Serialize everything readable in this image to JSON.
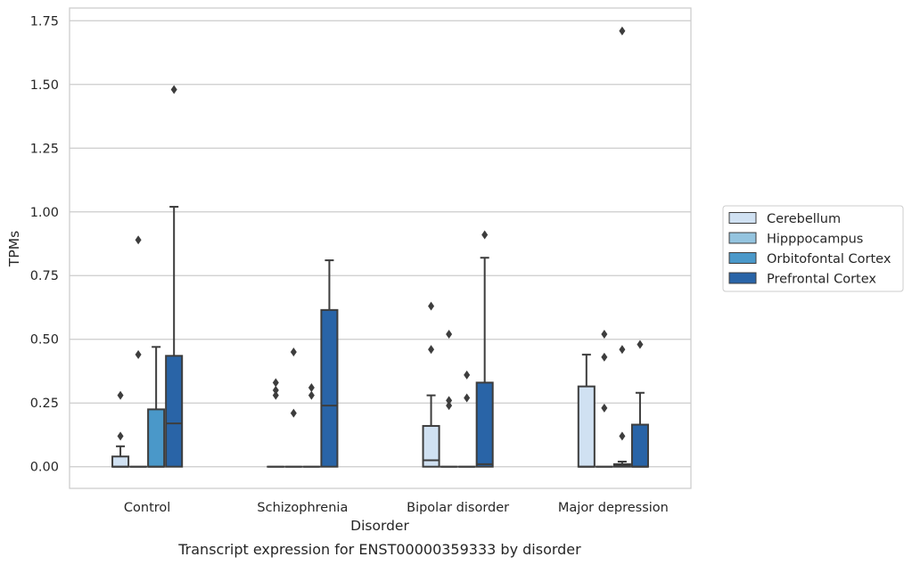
{
  "chart_data": {
    "type": "boxplot",
    "title": "",
    "caption": "Transcript expression for ENST00000359333 by disorder",
    "xlabel": "Disorder",
    "ylabel": "TPMs",
    "ylim": [
      -0.085,
      1.8
    ],
    "yticks": [
      0.0,
      0.25,
      0.5,
      0.75,
      1.0,
      1.25,
      1.5,
      1.75
    ],
    "ytick_labels": [
      "0.00",
      "0.25",
      "0.50",
      "0.75",
      "1.00",
      "1.25",
      "1.50",
      "1.75"
    ],
    "grid": true,
    "legend_position": "right",
    "categories": [
      "Control",
      "Schizophrenia",
      "Bipolar disorder",
      "Major depression"
    ],
    "series": [
      {
        "name": "Cerebellum",
        "color": "#d0e1f2",
        "boxes": [
          {
            "whislo": 0.0,
            "q1": 0.0,
            "med": 0.0,
            "q3": 0.04,
            "whishi": 0.08,
            "fliers": [
              0.12,
              0.28
            ]
          },
          {
            "whislo": 0.0,
            "q1": 0.0,
            "med": 0.0,
            "q3": 0.0,
            "whishi": 0.0,
            "fliers": [
              0.28,
              0.3,
              0.33
            ]
          },
          {
            "whislo": 0.0,
            "q1": 0.0,
            "med": 0.025,
            "q3": 0.16,
            "whishi": 0.28,
            "fliers": [
              0.46,
              0.63
            ]
          },
          {
            "whislo": 0.0,
            "q1": 0.0,
            "med": 0.0,
            "q3": 0.315,
            "whishi": 0.44,
            "fliers": []
          }
        ]
      },
      {
        "name": "Hipppocampus",
        "color": "#94c4df",
        "boxes": [
          {
            "whislo": 0.0,
            "q1": 0.0,
            "med": 0.0,
            "q3": 0.0,
            "whishi": 0.0,
            "fliers": [
              0.44,
              0.89
            ]
          },
          {
            "whislo": 0.0,
            "q1": 0.0,
            "med": 0.0,
            "q3": 0.0,
            "whishi": 0.0,
            "fliers": [
              0.21,
              0.45
            ]
          },
          {
            "whislo": 0.0,
            "q1": 0.0,
            "med": 0.0,
            "q3": 0.0,
            "whishi": 0.0,
            "fliers": [
              0.24,
              0.26,
              0.52
            ]
          },
          {
            "whislo": 0.0,
            "q1": 0.0,
            "med": 0.0,
            "q3": 0.0,
            "whishi": 0.0,
            "fliers": [
              0.23,
              0.43,
              0.52
            ]
          }
        ]
      },
      {
        "name": "Orbitofontal Cortex",
        "color": "#4a98c9",
        "boxes": [
          {
            "whislo": 0.0,
            "q1": 0.0,
            "med": 0.0,
            "q3": 0.225,
            "whishi": 0.47,
            "fliers": []
          },
          {
            "whislo": 0.0,
            "q1": 0.0,
            "med": 0.0,
            "q3": 0.0,
            "whishi": 0.0,
            "fliers": [
              0.28,
              0.31
            ]
          },
          {
            "whislo": 0.0,
            "q1": 0.0,
            "med": 0.0,
            "q3": 0.0,
            "whishi": 0.0,
            "fliers": [
              0.27,
              0.36
            ]
          },
          {
            "whislo": 0.0,
            "q1": 0.0,
            "med": 0.005,
            "q3": 0.01,
            "whishi": 0.02,
            "fliers": [
              0.12,
              0.46,
              1.71
            ]
          }
        ]
      },
      {
        "name": "Prefrontal Cortex",
        "color": "#2964a7",
        "boxes": [
          {
            "whislo": 0.0,
            "q1": 0.0,
            "med": 0.17,
            "q3": 0.435,
            "whishi": 1.02,
            "fliers": [
              1.48
            ]
          },
          {
            "whislo": 0.0,
            "q1": 0.0,
            "med": 0.24,
            "q3": 0.615,
            "whishi": 0.81,
            "fliers": []
          },
          {
            "whislo": 0.0,
            "q1": 0.0,
            "med": 0.01,
            "q3": 0.33,
            "whishi": 0.82,
            "fliers": [
              0.91
            ]
          },
          {
            "whislo": 0.0,
            "q1": 0.0,
            "med": 0.0,
            "q3": 0.165,
            "whishi": 0.29,
            "fliers": [
              0.48
            ]
          }
        ]
      }
    ]
  }
}
